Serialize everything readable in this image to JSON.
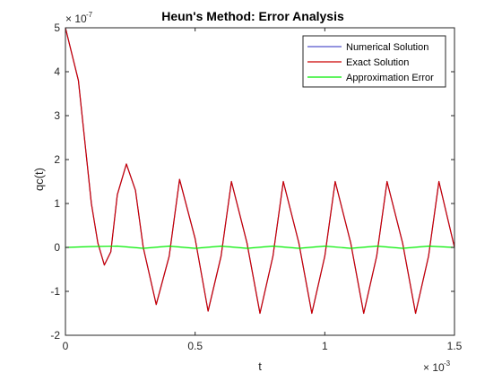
{
  "chart_data": {
    "type": "line",
    "title": "Heun's Method: Error Analysis",
    "xlabel": "t",
    "ylabel": "qc(t)",
    "x_exponent_label": "× 10",
    "x_exponent": "-3",
    "y_exponent_label": "× 10",
    "y_exponent": "-7",
    "xlim": [
      0,
      1.5
    ],
    "ylim": [
      -2,
      5
    ],
    "x_units_scale": "1e-3",
    "y_units_scale": "1e-7",
    "xticks": [
      0,
      0.5,
      1,
      1.5
    ],
    "xtick_labels": [
      "0",
      "0.5",
      "1",
      "1.5"
    ],
    "yticks": [
      -2,
      -1,
      0,
      1,
      2,
      3,
      4,
      5
    ],
    "ytick_labels": [
      "-2",
      "-1",
      "0",
      "1",
      "2",
      "3",
      "4",
      "5"
    ],
    "grid": false,
    "legend_position": "top-right",
    "series": [
      {
        "name": "Numerical Solution",
        "color": "#5555cc",
        "x": [
          0,
          0.05,
          0.1,
          0.125,
          0.15,
          0.175,
          0.2,
          0.235,
          0.27,
          0.3,
          0.35,
          0.4,
          0.44,
          0.5,
          0.55,
          0.6,
          0.64,
          0.7,
          0.75,
          0.8,
          0.84,
          0.9,
          0.95,
          1.0,
          1.04,
          1.1,
          1.15,
          1.2,
          1.24,
          1.3,
          1.35,
          1.4,
          1.44,
          1.5
        ],
        "y": [
          5,
          3.8,
          1.0,
          0.1,
          -0.4,
          -0.1,
          1.2,
          1.9,
          1.3,
          0.0,
          -1.3,
          -0.2,
          1.55,
          0.2,
          -1.45,
          -0.2,
          1.5,
          0.1,
          -1.5,
          -0.2,
          1.5,
          0.1,
          -1.5,
          -0.2,
          1.5,
          0.1,
          -1.5,
          -0.2,
          1.5,
          0.1,
          -1.5,
          -0.2,
          1.5,
          0.0
        ]
      },
      {
        "name": "Exact Solution",
        "color": "#cc0000",
        "x": [
          0,
          0.05,
          0.1,
          0.125,
          0.15,
          0.175,
          0.2,
          0.235,
          0.27,
          0.3,
          0.35,
          0.4,
          0.44,
          0.5,
          0.55,
          0.6,
          0.64,
          0.7,
          0.75,
          0.8,
          0.84,
          0.9,
          0.95,
          1.0,
          1.04,
          1.1,
          1.15,
          1.2,
          1.24,
          1.3,
          1.35,
          1.4,
          1.44,
          1.5
        ],
        "y": [
          5,
          3.8,
          1.0,
          0.1,
          -0.4,
          -0.1,
          1.2,
          1.9,
          1.3,
          0.0,
          -1.3,
          -0.2,
          1.55,
          0.2,
          -1.45,
          -0.2,
          1.5,
          0.1,
          -1.5,
          -0.2,
          1.5,
          0.1,
          -1.5,
          -0.2,
          1.5,
          0.1,
          -1.5,
          -0.2,
          1.5,
          0.1,
          -1.5,
          -0.2,
          1.5,
          0.0
        ]
      },
      {
        "name": "Approximation Error",
        "color": "#00ee00",
        "x": [
          0,
          0.1,
          0.2,
          0.3,
          0.4,
          0.5,
          0.6,
          0.7,
          0.8,
          0.9,
          1.0,
          1.1,
          1.2,
          1.3,
          1.4,
          1.5
        ],
        "y": [
          0,
          0.02,
          0.03,
          -0.02,
          0.03,
          -0.02,
          0.03,
          -0.02,
          0.03,
          -0.02,
          0.03,
          -0.02,
          0.03,
          -0.02,
          0.03,
          0
        ]
      }
    ]
  }
}
